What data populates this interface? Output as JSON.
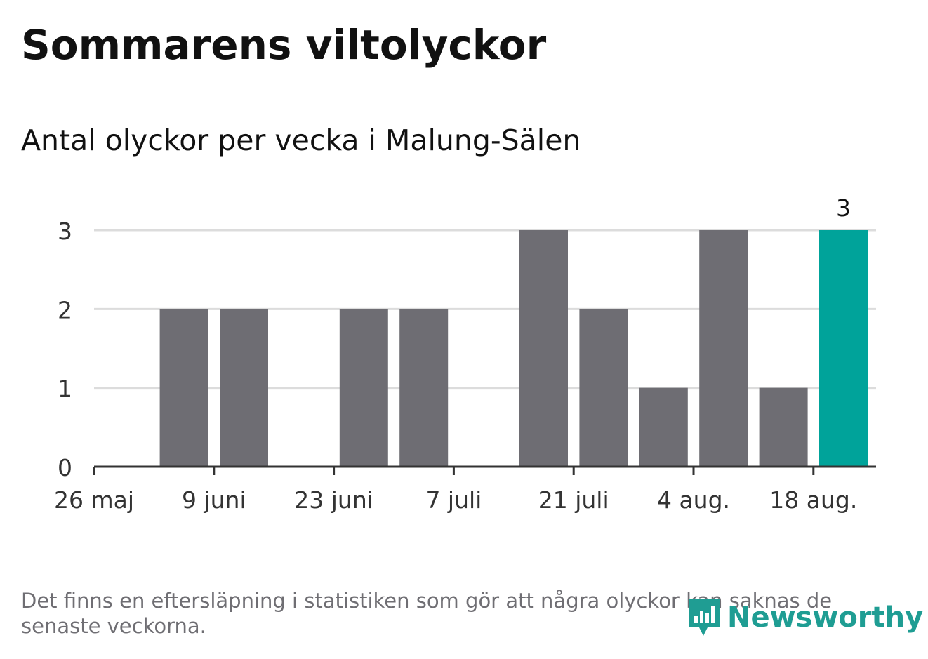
{
  "title": "Sommarens viltolyckor",
  "subtitle": "Antal olyckor per vecka i Malung-Sälen",
  "footnote": "Det finns en eftersläpning i statistiken som gör att några olyckor kan saknas de senaste veckorna.",
  "brand": {
    "name": "Newsworthy",
    "icon": "newsworthy-logo-icon",
    "color": "#1f9d93"
  },
  "colors": {
    "bar": "#6e6d73",
    "highlight": "#00a39a",
    "grid": "#dcdcdc",
    "axis": "#333333"
  },
  "chart_data": {
    "type": "bar",
    "x": [
      "2024-05-27",
      "2024-06-03",
      "2024-06-10",
      "2024-06-17",
      "2024-06-24",
      "2024-07-01",
      "2024-07-08",
      "2024-07-15",
      "2024-07-22",
      "2024-07-29",
      "2024-08-05",
      "2024-08-12",
      "2024-08-19"
    ],
    "values": [
      0,
      2,
      2,
      0,
      2,
      2,
      0,
      3,
      2,
      1,
      3,
      1,
      3
    ],
    "highlight_index": 12,
    "highlight_label": "3",
    "x_ticks": [
      "26 maj",
      "9 juni",
      "23 juni",
      "7 juli",
      "21 juli",
      "4 aug.",
      "18 aug."
    ],
    "y_ticks": [
      "0",
      "1",
      "2",
      "3"
    ],
    "ylim": [
      0,
      3
    ],
    "grid": true
  }
}
